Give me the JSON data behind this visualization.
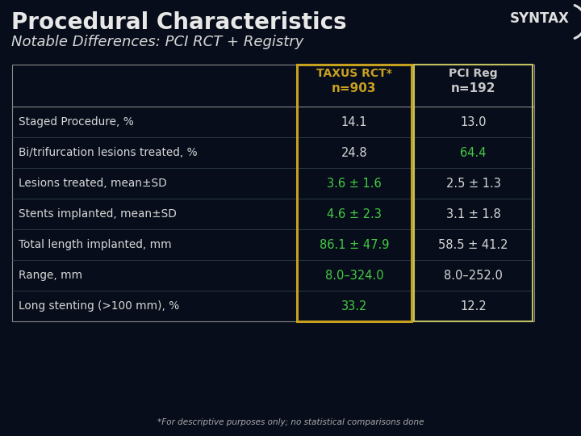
{
  "title": "Procedural Characteristics",
  "subtitle": "Notable Differences: PCI RCT + Registry",
  "bg_color": "#070d1a",
  "col1_header_line1": "TAXUS RCT*",
  "col1_header_line2": "n=903",
  "col2_header_line1": "PCI Reg",
  "col2_header_line2": "n=192",
  "col1_header_color": "#c8a020",
  "col2_header_color": "#c8c8c8",
  "rows": [
    "Staged Procedure, %",
    "Bi/trifurcation lesions treated, %",
    "Lesions treated, mean±SD",
    "Stents implanted, mean±SD",
    "Total length implanted, mm",
    "Range, mm",
    "Long stenting (>100 mm), %"
  ],
  "col1_values": [
    "14.1",
    "24.8",
    "3.6 ± 1.6",
    "4.6 ± 2.3",
    "86.1 ± 47.9",
    "8.0–324.0",
    "33.2"
  ],
  "col2_values": [
    "13.0",
    "64.4",
    "2.5 ± 1.3",
    "3.1 ± 1.8",
    "58.5 ± 41.2",
    "8.0–252.0",
    "12.2"
  ],
  "col1_value_colors": [
    "#d8d8d8",
    "#d8d8d8",
    "#44cc44",
    "#44cc44",
    "#44cc44",
    "#44cc44",
    "#44cc44"
  ],
  "col2_value_colors": [
    "#d8d8d8",
    "#44cc44",
    "#d8d8d8",
    "#d8d8d8",
    "#d8d8d8",
    "#d8d8d8",
    "#d8d8d8"
  ],
  "row_label_color": "#d8d8d8",
  "title_color": "#e8e8e8",
  "subtitle_color": "#d8d8d8",
  "footnote": "*For descriptive purposes only; no statistical comparisons done",
  "col1_border_color": "#c8a020",
  "col2_border_color": "#c0c060",
  "table_outer_border_color": "#888888",
  "syntax_color": "#e0e0e0"
}
